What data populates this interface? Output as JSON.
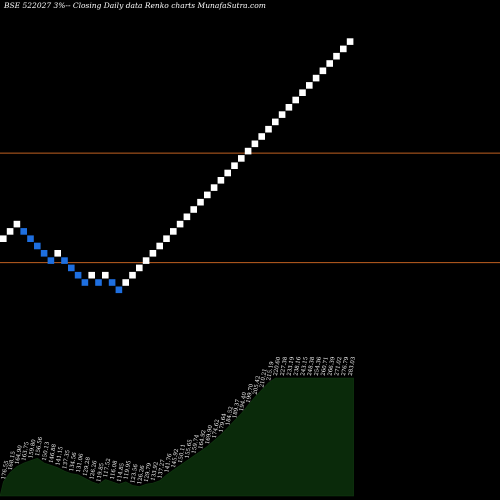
{
  "header": {
    "title": "BSE 522027 3%-- Closing Daily data Renko charts MunafaSutra.com"
  },
  "colors": {
    "background": "#000000",
    "up_brick": "#ffffff",
    "down_brick": "#1e6fe0",
    "reference_line": "#c06020",
    "volume_fill": "#0a2a0a"
  },
  "chart_data": {
    "type": "renko",
    "title": "BSE 522027 3%-- Closing Daily data Renko charts MunafaSutra.com",
    "bricks": [
      {
        "dir": "up",
        "level": 2
      },
      {
        "dir": "up",
        "level": 3
      },
      {
        "dir": "up",
        "level": 4
      },
      {
        "dir": "down",
        "level": 3
      },
      {
        "dir": "down",
        "level": 2
      },
      {
        "dir": "down",
        "level": 1
      },
      {
        "dir": "down",
        "level": 0
      },
      {
        "dir": "down",
        "level": -1
      },
      {
        "dir": "up",
        "level": 0
      },
      {
        "dir": "down",
        "level": -1
      },
      {
        "dir": "down",
        "level": -2
      },
      {
        "dir": "down",
        "level": -3
      },
      {
        "dir": "down",
        "level": -4
      },
      {
        "dir": "up",
        "level": -3
      },
      {
        "dir": "down",
        "level": -4
      },
      {
        "dir": "up",
        "level": -3
      },
      {
        "dir": "down",
        "level": -4
      },
      {
        "dir": "down",
        "level": -5
      },
      {
        "dir": "up",
        "level": -4
      },
      {
        "dir": "up",
        "level": -3
      },
      {
        "dir": "up",
        "level": -2
      },
      {
        "dir": "up",
        "level": -1
      },
      {
        "dir": "up",
        "level": 0
      },
      {
        "dir": "up",
        "level": 1
      },
      {
        "dir": "up",
        "level": 2
      },
      {
        "dir": "up",
        "level": 3
      },
      {
        "dir": "up",
        "level": 4
      },
      {
        "dir": "up",
        "level": 5
      },
      {
        "dir": "up",
        "level": 6
      },
      {
        "dir": "up",
        "level": 7
      },
      {
        "dir": "up",
        "level": 8
      },
      {
        "dir": "up",
        "level": 9
      },
      {
        "dir": "up",
        "level": 10
      },
      {
        "dir": "up",
        "level": 11
      },
      {
        "dir": "up",
        "level": 12
      },
      {
        "dir": "up",
        "level": 13
      },
      {
        "dir": "up",
        "level": 14
      },
      {
        "dir": "up",
        "level": 15
      },
      {
        "dir": "up",
        "level": 16
      },
      {
        "dir": "up",
        "level": 17
      },
      {
        "dir": "up",
        "level": 18
      },
      {
        "dir": "up",
        "level": 19
      },
      {
        "dir": "up",
        "level": 20
      },
      {
        "dir": "up",
        "level": 21
      },
      {
        "dir": "up",
        "level": 22
      },
      {
        "dir": "up",
        "level": 23
      },
      {
        "dir": "up",
        "level": 24
      },
      {
        "dir": "up",
        "level": 25
      },
      {
        "dir": "up",
        "level": 26
      },
      {
        "dir": "up",
        "level": 27
      },
      {
        "dir": "up",
        "level": 28
      },
      {
        "dir": "up",
        "level": 29
      }
    ],
    "reference_levels": [
      14,
      -1
    ],
    "price_labels": [
      "176.55",
      "168.15",
      "164.90",
      "163.75",
      "159.80",
      "156.56",
      "150.13",
      "146.88",
      "141.15",
      "137.35",
      "134.56",
      "131.06",
      "129.28",
      "126.26",
      "119.85",
      "117.52",
      "116.08",
      "114.85",
      "119.95",
      "123.56",
      "126.26",
      "129.79",
      "133.92",
      "137.27",
      "141.76",
      "145.92",
      "150.11",
      "155.65",
      "159.74",
      "164.92",
      "169.90",
      "174.62",
      "179.64",
      "184.52",
      "189.37",
      "194.40",
      "199.70",
      "205.42",
      "210.21",
      "215.19",
      "220.60",
      "227.38",
      "233.19",
      "238.16",
      "243.15",
      "248.38",
      "254.36",
      "260.71",
      "266.39",
      "271.02",
      "276.79",
      "283.03"
    ],
    "volume_profile": [
      12,
      20,
      25,
      28,
      30,
      32,
      28,
      26,
      24,
      21,
      19,
      18,
      15,
      12,
      10,
      14,
      12,
      10,
      12,
      9,
      8,
      10,
      11,
      13,
      18,
      22,
      26,
      30,
      34,
      38,
      42,
      47,
      52,
      58,
      64,
      70,
      77,
      84,
      90,
      96,
      100,
      100,
      100,
      100,
      100,
      100,
      100,
      100,
      100,
      100,
      100,
      100
    ],
    "grid": false,
    "legend": "none"
  }
}
